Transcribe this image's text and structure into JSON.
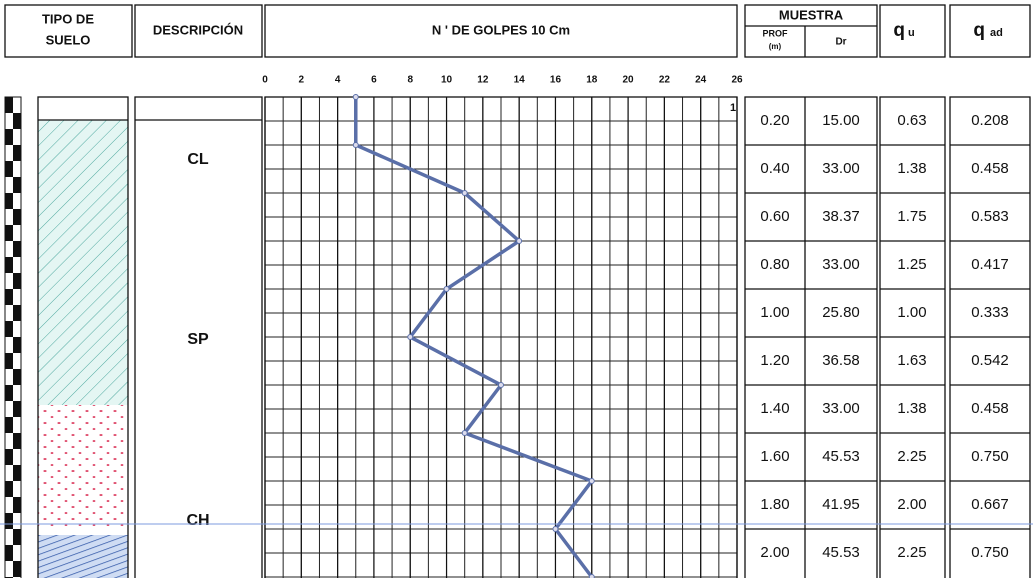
{
  "header": {
    "tipo_line1": "TIPO DE",
    "tipo_line2": "SUELO",
    "descripcion": "DESCRIPCIÓN",
    "muestra": "MUESTRA",
    "prof": "PROF",
    "prof_unit": "(m)",
    "dr": "Dr",
    "qu_main": "q",
    "qu_sub": "u",
    "qad_main": "q",
    "qad_sub": "ad"
  },
  "soils": [
    "CL",
    "SP",
    "CH"
  ],
  "chart_data": {
    "type": "line",
    "title": "N ' DE GOLPES 10 Cm",
    "annotation": "1",
    "color": "#5a6fa8",
    "values": [
      5,
      5,
      11,
      14,
      10,
      8,
      13,
      11,
      18,
      16,
      18
    ],
    "xlim": [
      0,
      26
    ],
    "xticks": [
      0,
      2,
      4,
      6,
      8,
      10,
      12,
      14,
      16,
      18,
      20,
      22,
      24,
      26
    ]
  },
  "table": {
    "rows": [
      [
        "0.20",
        "15.00",
        "0.63",
        "0.208"
      ],
      [
        "0.40",
        "33.00",
        "1.38",
        "0.458"
      ],
      [
        "0.60",
        "38.37",
        "1.75",
        "0.583"
      ],
      [
        "0.80",
        "33.00",
        "1.25",
        "0.417"
      ],
      [
        "1.00",
        "25.80",
        "1.00",
        "0.333"
      ],
      [
        "1.20",
        "36.58",
        "1.63",
        "0.542"
      ],
      [
        "1.40",
        "33.00",
        "1.38",
        "0.458"
      ],
      [
        "1.60",
        "45.53",
        "2.25",
        "0.750"
      ],
      [
        "1.80",
        "41.95",
        "2.00",
        "0.667"
      ],
      [
        "2.00",
        "45.53",
        "2.25",
        "0.750"
      ]
    ]
  }
}
